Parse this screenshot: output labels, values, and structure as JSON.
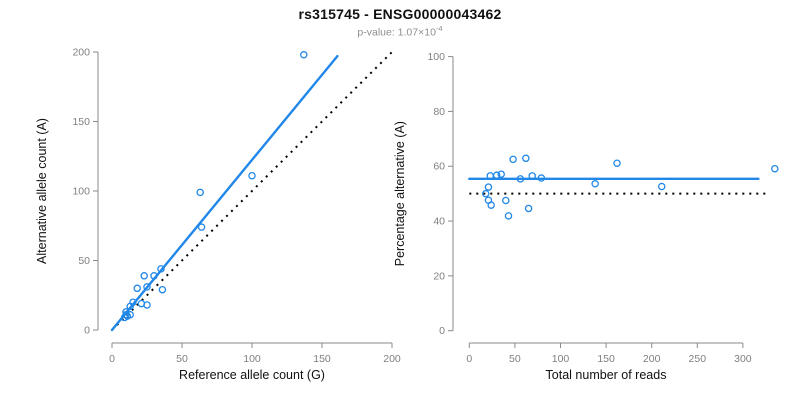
{
  "header": {
    "title": "rs315745 - ENSG00000043462",
    "pvalue_label": "p-value: ",
    "pvalue_mantissa": "1.07×10",
    "pvalue_exponent": "-4"
  },
  "colors": {
    "accent_blue": "#2187e8",
    "identity_black": "#000000",
    "axis_gray": "#8a8a8a",
    "tick_label_gray": "#7f7f7f",
    "title_dark": "#111111",
    "subtitle_gray": "#8f8f8f",
    "background": "#ffffff"
  },
  "chart_data": [
    {
      "type": "scatter",
      "name": "allele-counts-scatter",
      "xlabel": "Reference allele count (G)",
      "ylabel": "Alternative allele count (A)",
      "xlim": [
        0,
        200
      ],
      "ylim": [
        0,
        200
      ],
      "xticks": [
        0,
        50,
        100,
        150,
        200
      ],
      "yticks": [
        0,
        50,
        100,
        150,
        200
      ],
      "grid": false,
      "legend": "none",
      "marker": "open-circle",
      "points": [
        [
          137,
          198
        ],
        [
          100,
          111
        ],
        [
          63,
          99
        ],
        [
          64,
          74
        ],
        [
          23,
          39
        ],
        [
          30,
          39
        ],
        [
          35,
          44
        ],
        [
          25,
          31
        ],
        [
          18,
          30
        ],
        [
          36,
          29
        ],
        [
          21,
          19
        ],
        [
          25,
          18
        ],
        [
          15,
          20
        ],
        [
          13,
          17
        ],
        [
          10,
          13
        ],
        [
          13,
          11
        ],
        [
          10,
          11
        ],
        [
          11,
          10
        ],
        [
          9,
          9
        ]
      ],
      "lines": [
        {
          "name": "identity-line",
          "style": "dotted",
          "color": "#000000",
          "from": [
            0,
            0
          ],
          "to": [
            200,
            200
          ]
        },
        {
          "name": "regression-line",
          "style": "solid",
          "color": "#2187e8",
          "from": [
            0,
            0
          ],
          "to": [
            161,
            197
          ]
        }
      ]
    },
    {
      "type": "scatter",
      "name": "percentage-vs-coverage-scatter",
      "xlabel": "Total number of reads",
      "ylabel": "Percentage alternative (A)",
      "xlim": [
        0,
        340
      ],
      "ylim": [
        0,
        100
      ],
      "xticks": [
        0,
        50,
        100,
        150,
        200,
        250,
        300
      ],
      "yticks": [
        0,
        20,
        40,
        60,
        80,
        100
      ],
      "grid": false,
      "legend": "none",
      "marker": "open-circle",
      "points": [
        [
          335,
          59.1
        ],
        [
          211,
          52.6
        ],
        [
          162,
          61.1
        ],
        [
          138,
          53.6
        ],
        [
          62,
          62.9
        ],
        [
          69,
          56.5
        ],
        [
          79,
          55.7
        ],
        [
          56,
          55.4
        ],
        [
          48,
          62.5
        ],
        [
          65,
          44.6
        ],
        [
          40,
          47.5
        ],
        [
          43,
          41.9
        ],
        [
          35,
          57.1
        ],
        [
          30,
          56.7
        ],
        [
          23,
          56.5
        ],
        [
          24,
          45.8
        ],
        [
          21,
          52.4
        ],
        [
          21,
          47.6
        ],
        [
          18,
          50.0
        ]
      ],
      "lines": [
        {
          "name": "null-50pct-line",
          "style": "dotted",
          "color": "#000000",
          "from": [
            0,
            50
          ],
          "to": [
            328,
            50
          ]
        },
        {
          "name": "mean-percentage-line",
          "style": "solid",
          "color": "#2187e8",
          "from": [
            0,
            55.4
          ],
          "to": [
            317,
            55.4
          ]
        }
      ]
    }
  ]
}
